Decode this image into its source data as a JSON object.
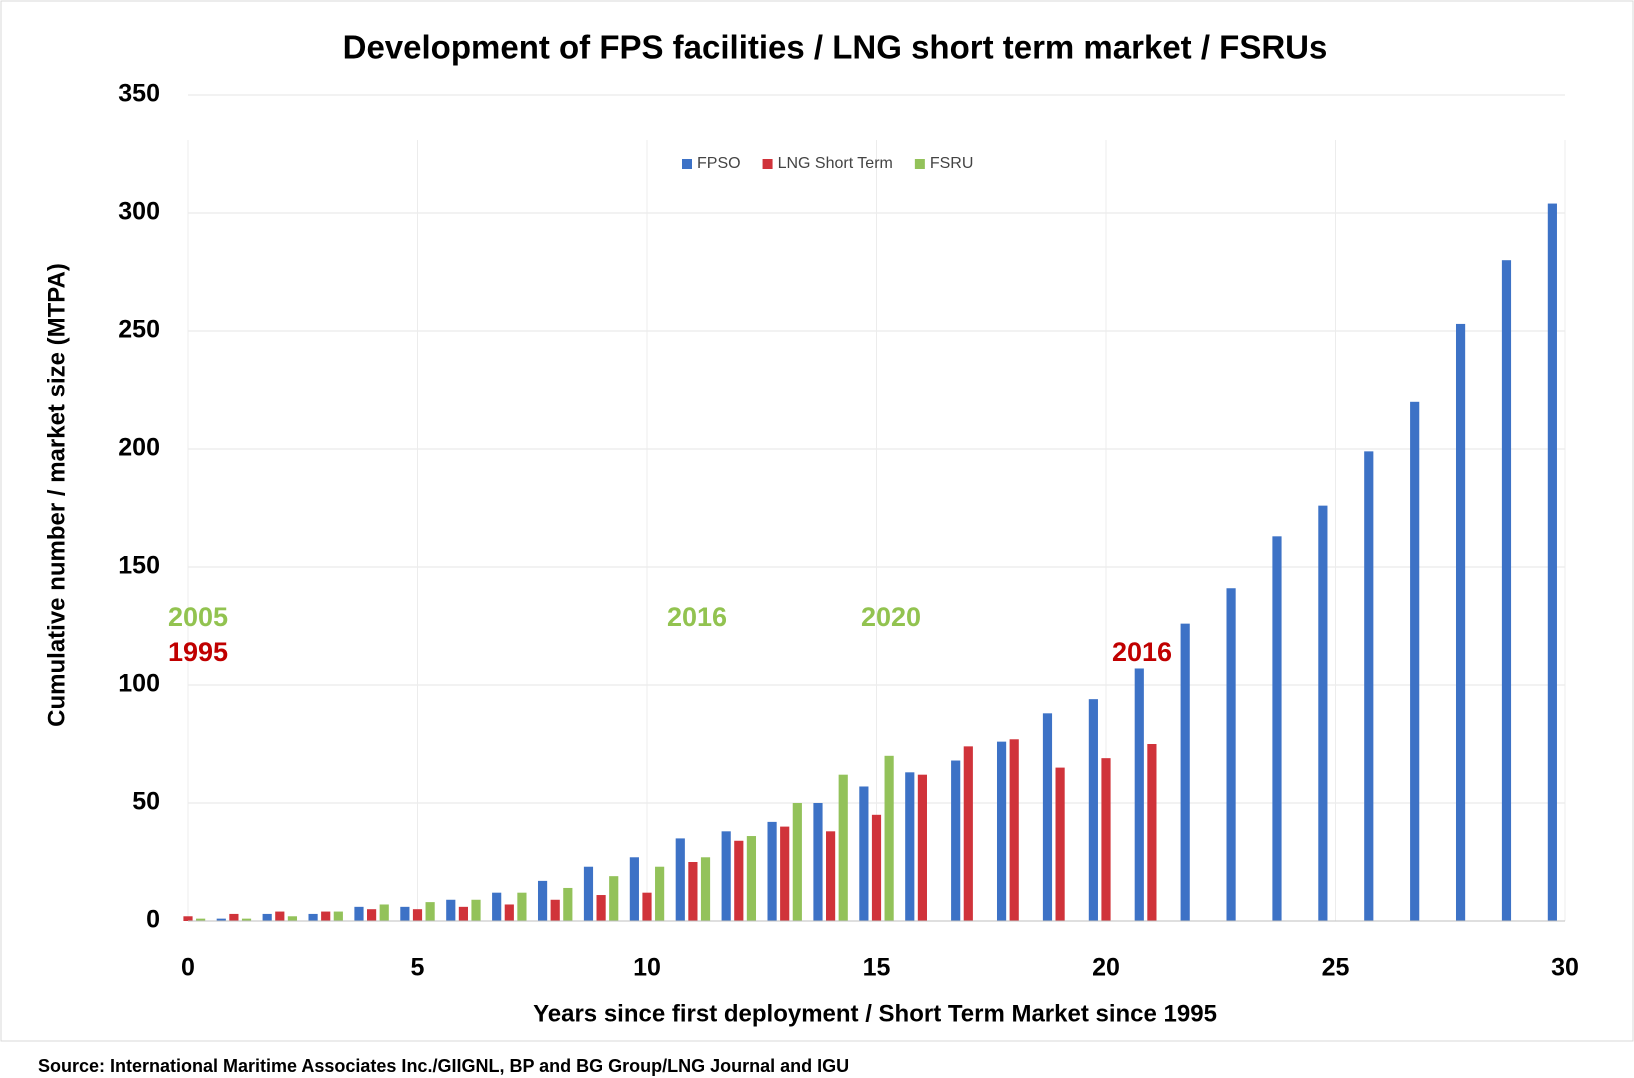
{
  "chart_data": {
    "type": "bar",
    "title": "Development of FPS facilities / LNG short term market / FSRUs",
    "x_label": "Years since first deployment / Short Term Market since 1995",
    "y_label": "Cumulative number  / market size (MTPA)",
    "source": "Source: International Maritime Associates Inc./GIIGNL, BP and BG Group/LNG Journal and IGU",
    "x": [
      0,
      1,
      2,
      3,
      4,
      5,
      6,
      7,
      8,
      9,
      10,
      11,
      12,
      13,
      14,
      15,
      16,
      17,
      18,
      19,
      20,
      21,
      22,
      23,
      24,
      25,
      26,
      27,
      28,
      29,
      30
    ],
    "series": [
      {
        "name": "FPSO",
        "color": "#3d72c6",
        "values": [
          null,
          1,
          3,
          3,
          6,
          6,
          9,
          12,
          17,
          23,
          27,
          35,
          38,
          42,
          50,
          57,
          63,
          68,
          76,
          88,
          94,
          107,
          126,
          141,
          163,
          176,
          199,
          220,
          253,
          280,
          304
        ]
      },
      {
        "name": "LNG Short Term",
        "color": "#d0333a",
        "values": [
          2,
          3,
          4,
          4,
          5,
          5,
          6,
          7,
          9,
          11,
          12,
          25,
          34,
          40,
          38,
          45,
          62,
          74,
          77,
          65,
          69,
          75,
          null,
          null,
          null,
          null,
          null,
          null,
          null,
          null,
          null
        ]
      },
      {
        "name": "FSRU",
        "color": "#93c25a",
        "values": [
          1,
          1,
          2,
          4,
          7,
          8,
          9,
          12,
          14,
          19,
          23,
          27,
          36,
          50,
          62,
          70,
          null,
          null,
          null,
          null,
          null,
          null,
          null,
          null,
          null,
          null,
          null,
          null,
          null,
          null,
          null
        ]
      }
    ],
    "annotations": [
      {
        "text": "2005",
        "color": "#92c350"
      },
      {
        "text": "1995",
        "color": "#c00000"
      },
      {
        "text": "2016",
        "color": "#92c350"
      },
      {
        "text": "2020",
        "color": "#92c350"
      },
      {
        "text": "2016",
        "color": "#c00000"
      }
    ],
    "xlim": [
      0,
      30
    ],
    "xticks": [
      0,
      5,
      10,
      15,
      20,
      25,
      30
    ],
    "ylim": [
      0,
      350
    ],
    "yticks": [
      0,
      50,
      100,
      150,
      200,
      250,
      300,
      350
    ],
    "grid": true,
    "legend": "top"
  }
}
